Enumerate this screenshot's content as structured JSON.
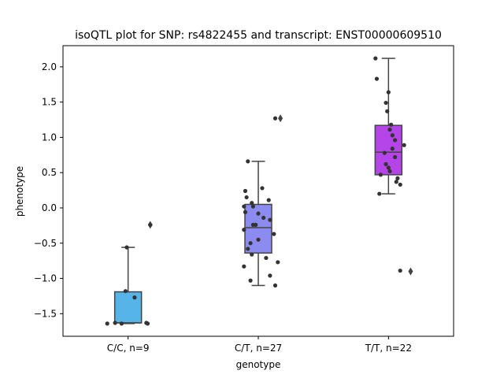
{
  "chart_data": {
    "type": "box",
    "title": "isoQTL plot for SNP: rs4822455 and transcript: ENST00000609510",
    "xlabel": "genotype",
    "ylabel": "phenotype",
    "ylim": [
      -1.82,
      2.3
    ],
    "yticks": [
      -1.5,
      -1.0,
      -0.5,
      0.0,
      0.5,
      1.0,
      1.5,
      2.0
    ],
    "ytick_labels": [
      "−1.5",
      "−1.0",
      "−0.5",
      "0.0",
      "0.5",
      "1.0",
      "1.5",
      "2.0"
    ],
    "grid": false,
    "categories": [
      "C/C, n=9",
      "C/T, n=27",
      "T/T, n=22"
    ],
    "boxes": [
      {
        "category": "C/C, n=9",
        "color": "#56b4e9",
        "whisker_low": -1.64,
        "q1": -1.63,
        "median": -1.63,
        "q3": -1.19,
        "whisker_high": -0.56,
        "outliers": [
          -0.24
        ]
      },
      {
        "category": "C/T, n=27",
        "color": "#8c8cf0",
        "whisker_low": -1.1,
        "q1": -0.64,
        "median": -0.28,
        "q3": 0.05,
        "whisker_high": 0.66,
        "outliers": [
          1.27
        ]
      },
      {
        "category": "T/T, n=22",
        "color": "#b545e8",
        "whisker_low": 0.2,
        "q1": 0.47,
        "median": 0.79,
        "q3": 1.17,
        "whisker_high": 2.12,
        "outliers": [
          -0.9
        ]
      }
    ],
    "points": [
      {
        "category": 0,
        "jitter": -0.05,
        "y": -1.64
      },
      {
        "category": 0,
        "jitter": -0.16,
        "y": -1.64
      },
      {
        "category": 0,
        "jitter": 0.15,
        "y": -1.64
      },
      {
        "category": 0,
        "jitter": 0.14,
        "y": -1.63
      },
      {
        "category": 0,
        "jitter": -0.1,
        "y": -1.63
      },
      {
        "category": 0,
        "jitter": 0.05,
        "y": -1.27
      },
      {
        "category": 0,
        "jitter": -0.02,
        "y": -1.18
      },
      {
        "category": 0,
        "jitter": -0.01,
        "y": -0.56
      },
      {
        "category": 0,
        "jitter": 0.17,
        "y": -0.24
      },
      {
        "category": 1,
        "jitter": 0.13,
        "y": -1.1
      },
      {
        "category": 1,
        "jitter": -0.06,
        "y": -1.03
      },
      {
        "category": 1,
        "jitter": 0.09,
        "y": -0.96
      },
      {
        "category": 1,
        "jitter": -0.11,
        "y": -0.83
      },
      {
        "category": 1,
        "jitter": 0.15,
        "y": -0.77
      },
      {
        "category": 1,
        "jitter": 0.06,
        "y": -0.71
      },
      {
        "category": 1,
        "jitter": -0.05,
        "y": -0.66
      },
      {
        "category": 1,
        "jitter": -0.08,
        "y": -0.58
      },
      {
        "category": 1,
        "jitter": -0.06,
        "y": -0.5
      },
      {
        "category": 1,
        "jitter": 0.0,
        "y": -0.45
      },
      {
        "category": 1,
        "jitter": 0.12,
        "y": -0.37
      },
      {
        "category": 1,
        "jitter": -0.11,
        "y": -0.31
      },
      {
        "category": 1,
        "jitter": -0.02,
        "y": -0.24
      },
      {
        "category": 1,
        "jitter": -0.04,
        "y": -0.24
      },
      {
        "category": 1,
        "jitter": 0.04,
        "y": -0.14
      },
      {
        "category": 1,
        "jitter": 0.09,
        "y": -0.17
      },
      {
        "category": 1,
        "jitter": 0.0,
        "y": -0.08
      },
      {
        "category": 1,
        "jitter": -0.1,
        "y": -0.06
      },
      {
        "category": 1,
        "jitter": -0.11,
        "y": 0.02
      },
      {
        "category": 1,
        "jitter": -0.04,
        "y": 0.02
      },
      {
        "category": 1,
        "jitter": -0.05,
        "y": 0.07
      },
      {
        "category": 1,
        "jitter": 0.08,
        "y": 0.11
      },
      {
        "category": 1,
        "jitter": -0.09,
        "y": 0.15
      },
      {
        "category": 1,
        "jitter": -0.1,
        "y": 0.24
      },
      {
        "category": 1,
        "jitter": 0.03,
        "y": 0.28
      },
      {
        "category": 1,
        "jitter": -0.08,
        "y": 0.66
      },
      {
        "category": 1,
        "jitter": 0.13,
        "y": 1.27
      },
      {
        "category": 2,
        "jitter": -0.07,
        "y": 0.2
      },
      {
        "category": 2,
        "jitter": 0.09,
        "y": 0.33
      },
      {
        "category": 2,
        "jitter": 0.06,
        "y": 0.37
      },
      {
        "category": 2,
        "jitter": 0.07,
        "y": 0.42
      },
      {
        "category": 2,
        "jitter": -0.06,
        "y": 0.47
      },
      {
        "category": 2,
        "jitter": 0.01,
        "y": 0.52
      },
      {
        "category": 2,
        "jitter": 0.0,
        "y": 0.57
      },
      {
        "category": 2,
        "jitter": -0.02,
        "y": 0.62
      },
      {
        "category": 2,
        "jitter": 0.05,
        "y": 0.72
      },
      {
        "category": 2,
        "jitter": -0.03,
        "y": 0.78
      },
      {
        "category": 2,
        "jitter": 0.03,
        "y": 0.84
      },
      {
        "category": 2,
        "jitter": 0.12,
        "y": 0.89
      },
      {
        "category": 2,
        "jitter": 0.05,
        "y": 0.96
      },
      {
        "category": 2,
        "jitter": 0.03,
        "y": 1.03
      },
      {
        "category": 2,
        "jitter": 0.01,
        "y": 1.11
      },
      {
        "category": 2,
        "jitter": 0.02,
        "y": 1.18
      },
      {
        "category": 2,
        "jitter": -0.01,
        "y": 1.37
      },
      {
        "category": 2,
        "jitter": -0.02,
        "y": 1.49
      },
      {
        "category": 2,
        "jitter": 0.0,
        "y": 1.64
      },
      {
        "category": 2,
        "jitter": -0.09,
        "y": 1.83
      },
      {
        "category": 2,
        "jitter": -0.1,
        "y": 2.12
      },
      {
        "category": 2,
        "jitter": 0.09,
        "y": -0.89
      }
    ]
  }
}
